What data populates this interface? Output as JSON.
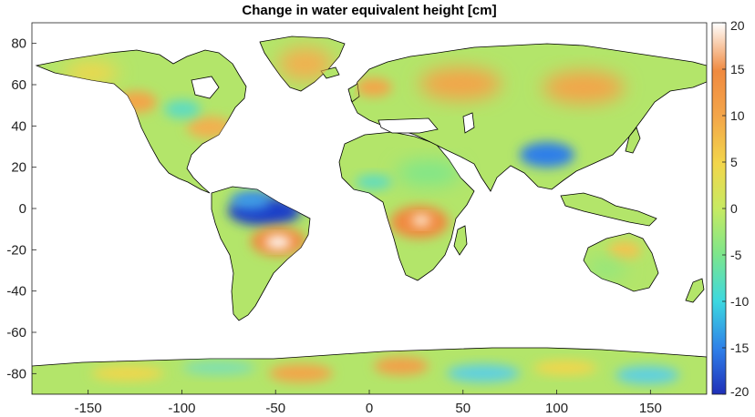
{
  "title": "Change in water equivalent height [cm]",
  "xaxis": {
    "range": [
      -180,
      180
    ],
    "ticks": [
      -150,
      -100,
      -50,
      0,
      50,
      100,
      150
    ]
  },
  "yaxis": {
    "range": [
      -90,
      90
    ],
    "ticks": [
      80,
      60,
      40,
      20,
      0,
      -20,
      -40,
      -60,
      -80
    ]
  },
  "colorbar": {
    "range": [
      -20,
      20
    ],
    "ticks": [
      20,
      15,
      10,
      5,
      0,
      -5,
      -10,
      -15,
      -20
    ],
    "colormap": "parula-like: dark blue → cyan → green → yellow → orange → white",
    "colors": [
      "#1f2fb8",
      "#2f7fe8",
      "#3cd8e0",
      "#7fe68a",
      "#c7ea62",
      "#f2d64b",
      "#f3a54a",
      "#f08a40",
      "#ffffff"
    ]
  },
  "chart_data": {
    "type": "heatmap",
    "title": "Change in water equivalent height [cm]",
    "xlim": [
      -180,
      180
    ],
    "ylim": [
      -90,
      90
    ],
    "clim": [
      -20,
      20
    ],
    "notable_regions": [
      {
        "lon": -60,
        "lat": -3,
        "value": -20
      },
      {
        "lon": -45,
        "lat": -15,
        "value": 20
      },
      {
        "lon": 25,
        "lat": -8,
        "value": 18
      },
      {
        "lon": 95,
        "lat": 27,
        "value": -10
      },
      {
        "lon": 20,
        "lat": 63,
        "value": 9
      },
      {
        "lon": 50,
        "lat": 55,
        "value": 9
      },
      {
        "lon": 95,
        "lat": 62,
        "value": 9
      }
    ]
  }
}
